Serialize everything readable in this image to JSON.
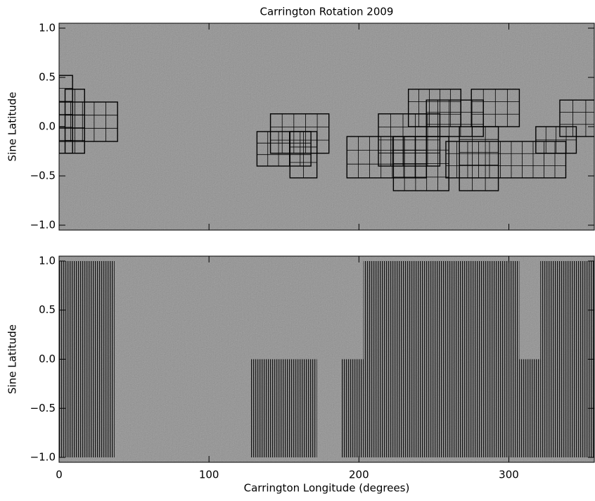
{
  "chart_data": [
    {
      "type": "boxes",
      "title": "Carrington Rotation 2009",
      "ylabel": "Sine Latitude",
      "xlim": [
        0,
        357
      ],
      "ylim": [
        -1.05,
        1.05
      ],
      "yticks": [
        {
          "value": 1,
          "label": "1.0"
        },
        {
          "value": 0.5,
          "label": "0.5"
        },
        {
          "value": 0,
          "label": "0.0"
        },
        {
          "value": -0.5,
          "label": "−0.5"
        },
        {
          "value": -1,
          "label": "−1.0"
        }
      ],
      "boxes": [
        [
          0,
          9,
          -0.27,
          0.52
        ],
        [
          0,
          39,
          -0.15,
          0.25
        ],
        [
          4,
          17,
          -0.27,
          0.38
        ],
        [
          132,
          168,
          -0.4,
          -0.05
        ],
        [
          141,
          180,
          -0.27,
          0.13
        ],
        [
          154,
          172,
          -0.52,
          -0.05
        ],
        [
          192,
          245,
          -0.52,
          -0.1
        ],
        [
          213,
          254,
          -0.4,
          0.13
        ],
        [
          223,
          260,
          -0.65,
          -0.1
        ],
        [
          233,
          268,
          0,
          0.38
        ],
        [
          245,
          283,
          -0.1,
          0.27
        ],
        [
          258,
          338,
          -0.52,
          -0.15
        ],
        [
          267,
          293,
          -0.65,
          0
        ],
        [
          275,
          307,
          0,
          0.38
        ],
        [
          318,
          345,
          -0.27,
          0
        ],
        [
          334,
          360,
          -0.1,
          0.27
        ]
      ]
    },
    {
      "type": "hatch",
      "ylabel": "Sine Latitude",
      "xlabel": "Carrington Longitude (degrees)",
      "xlim": [
        0,
        357
      ],
      "ylim": [
        -1.05,
        1.05
      ],
      "xticks": [
        0,
        100,
        200,
        300
      ],
      "yticks": [
        {
          "value": 1,
          "label": "1.0"
        },
        {
          "value": 0.5,
          "label": "0.5"
        },
        {
          "value": 0,
          "label": "0.0"
        },
        {
          "value": -0.5,
          "label": "−0.5"
        },
        {
          "value": -1,
          "label": "−1.0"
        }
      ],
      "regions": [
        [
          0,
          37,
          -1,
          1
        ],
        [
          128,
          172,
          -1,
          0
        ],
        [
          188,
          203,
          -1,
          0
        ],
        [
          203,
          307,
          -1,
          1
        ],
        [
          307,
          321,
          -1,
          0
        ],
        [
          321,
          360,
          -1,
          1
        ]
      ]
    }
  ]
}
